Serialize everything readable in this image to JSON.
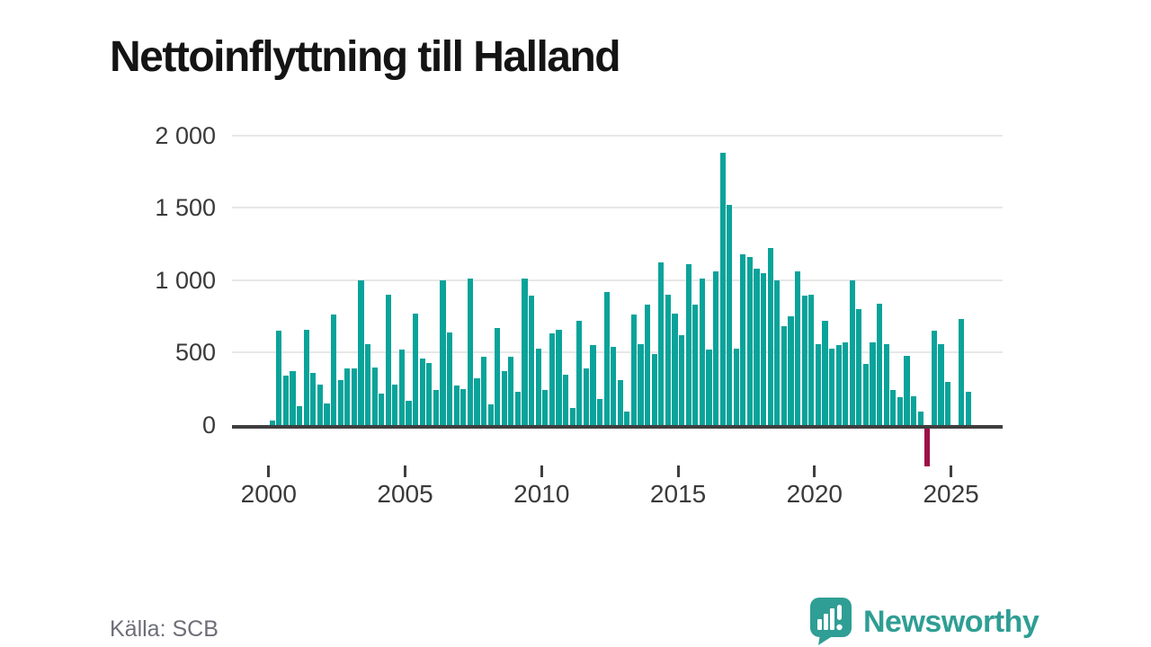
{
  "title": "Nettoinflyttning till Halland",
  "source": "Källa: SCB",
  "branding": {
    "logo_text": "Newsworthy",
    "logo_color": "#2f9e94",
    "logo_icon": "speech-bubble-bar-chart-icon"
  },
  "chart_data": {
    "type": "bar",
    "title": "Nettoinflyttning till Halland",
    "frequency": "quarterly",
    "grid": "horizontal",
    "legend": "none",
    "xlabel": "",
    "ylabel": "",
    "ylim": [
      -300,
      2050
    ],
    "colors": {
      "positive_bar": "#0aa39a",
      "negative_bar": "#9e1048",
      "axis": "#3f3f3f",
      "gridline": "#e7e7e7"
    },
    "y_axis": {
      "ticks": [
        0,
        500,
        1000,
        1500,
        2000
      ],
      "tick_labels": [
        "0",
        "500",
        "1 000",
        "1 500",
        "2 000"
      ]
    },
    "x_axis": {
      "tick_years": [
        2000,
        2005,
        2010,
        2015,
        2020,
        2025
      ]
    },
    "data": [
      {
        "year": 2000,
        "q": [
          30,
          650,
          340,
          370
        ]
      },
      {
        "year": 2001,
        "q": [
          130,
          660,
          360,
          280
        ]
      },
      {
        "year": 2002,
        "q": [
          150,
          760,
          310,
          390
        ]
      },
      {
        "year": 2003,
        "q": [
          390,
          1000,
          560,
          400
        ]
      },
      {
        "year": 2004,
        "q": [
          220,
          900,
          280,
          520
        ]
      },
      {
        "year": 2005,
        "q": [
          170,
          770,
          460,
          430
        ]
      },
      {
        "year": 2006,
        "q": [
          240,
          1000,
          640,
          270
        ]
      },
      {
        "year": 2007,
        "q": [
          250,
          1010,
          320,
          470
        ]
      },
      {
        "year": 2008,
        "q": [
          140,
          670,
          370,
          470
        ]
      },
      {
        "year": 2009,
        "q": [
          230,
          1010,
          890,
          530
        ]
      },
      {
        "year": 2010,
        "q": [
          240,
          630,
          660,
          350
        ]
      },
      {
        "year": 2011,
        "q": [
          120,
          720,
          390,
          550
        ]
      },
      {
        "year": 2012,
        "q": [
          180,
          920,
          540,
          310
        ]
      },
      {
        "year": 2013,
        "q": [
          90,
          760,
          560,
          830
        ]
      },
      {
        "year": 2014,
        "q": [
          490,
          1120,
          900,
          770
        ]
      },
      {
        "year": 2015,
        "q": [
          620,
          1110,
          830,
          1010
        ]
      },
      {
        "year": 2016,
        "q": [
          520,
          1060,
          1880,
          1520
        ]
      },
      {
        "year": 2017,
        "q": [
          530,
          1180,
          1160,
          1080
        ]
      },
      {
        "year": 2018,
        "q": [
          1050,
          1220,
          1000,
          680
        ]
      },
      {
        "year": 2019,
        "q": [
          750,
          1060,
          890,
          900
        ]
      },
      {
        "year": 2020,
        "q": [
          560,
          720,
          530,
          550
        ]
      },
      {
        "year": 2021,
        "q": [
          570,
          1000,
          800,
          420
        ]
      },
      {
        "year": 2022,
        "q": [
          570,
          840,
          560,
          240
        ]
      },
      {
        "year": 2023,
        "q": [
          190,
          480,
          200,
          90
        ]
      },
      {
        "year": 2024,
        "q": [
          -260,
          650,
          560,
          300
        ]
      },
      {
        "year": 2025,
        "q": [
          0,
          730,
          230
        ]
      }
    ]
  }
}
